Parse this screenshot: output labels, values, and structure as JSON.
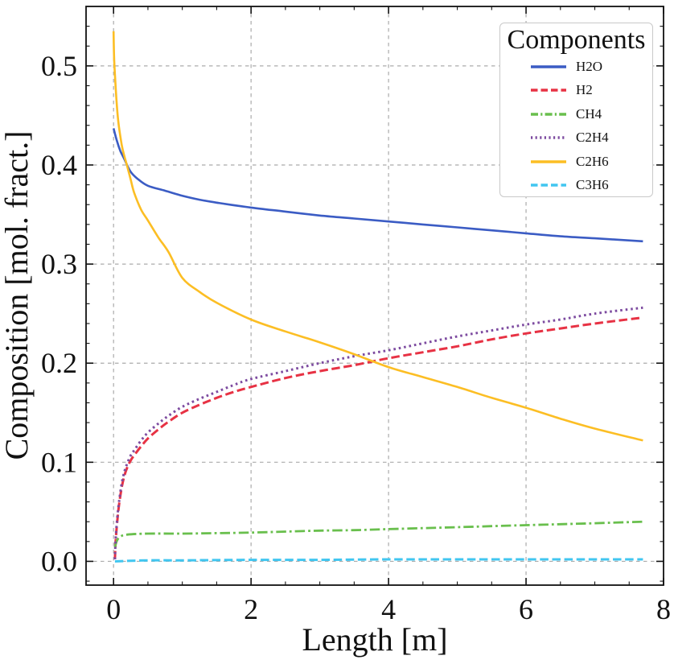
{
  "figure": {
    "background": "#ffffff"
  },
  "chart_data": {
    "type": "line",
    "title": "",
    "xlabel": "Length [m]",
    "ylabel": "Composition [mol. fract.]",
    "legend_title": "Components",
    "legend_position": "upper-right",
    "xlim": [
      -0.4,
      8.0
    ],
    "ylim": [
      -0.024,
      0.56
    ],
    "xticks": {
      "values": [
        0,
        2,
        4,
        6,
        8
      ],
      "labels": [
        "0",
        "2",
        "4",
        "6",
        "8"
      ]
    },
    "yticks": {
      "values": [
        0.0,
        0.1,
        0.2,
        0.3,
        0.4,
        0.5
      ],
      "labels": [
        "0.0",
        "0.1",
        "0.2",
        "0.3",
        "0.4",
        "0.5"
      ]
    },
    "minor_tick_step": {
      "x": 0.5,
      "y": 0.02
    },
    "grid": {
      "on": true,
      "color": "#ababab",
      "style": "dashed"
    },
    "series": [
      {
        "name": "H2O",
        "color": "#3b5cc4",
        "line_style": "solid",
        "x": [
          0,
          0.05,
          0.1,
          0.15,
          0.19,
          0.25,
          0.35,
          0.5,
          0.75,
          1,
          1.25,
          1.5,
          2,
          2.5,
          3,
          3.5,
          4,
          4.5,
          5,
          5.5,
          6,
          6.5,
          7,
          7.7
        ],
        "y": [
          0.437,
          0.424,
          0.414,
          0.407,
          0.401,
          0.393,
          0.386,
          0.379,
          0.374,
          0.369,
          0.365,
          0.362,
          0.357,
          0.353,
          0.349,
          0.346,
          0.343,
          0.34,
          0.337,
          0.334,
          0.331,
          0.328,
          0.326,
          0.323
        ]
      },
      {
        "name": "H2",
        "color": "#e73244",
        "line_style": "dashed",
        "x": [
          0.02,
          0.03,
          0.05,
          0.08,
          0.12,
          0.16,
          0.2,
          0.25,
          0.3,
          0.4,
          0.5,
          0.65,
          0.8,
          1,
          1.25,
          1.5,
          1.75,
          2,
          2.5,
          3,
          3.5,
          4,
          4.5,
          5,
          5.5,
          6,
          6.5,
          7,
          7.7
        ],
        "y": [
          0.002,
          0.02,
          0.038,
          0.057,
          0.075,
          0.087,
          0.095,
          0.102,
          0.107,
          0.116,
          0.124,
          0.133,
          0.141,
          0.15,
          0.158,
          0.165,
          0.171,
          0.176,
          0.185,
          0.192,
          0.198,
          0.205,
          0.211,
          0.217,
          0.224,
          0.23,
          0.235,
          0.24,
          0.246
        ]
      },
      {
        "name": "CH4",
        "color": "#69bf4d",
        "line_style": "dashdot",
        "x": [
          0.02,
          0.05,
          0.1,
          0.2,
          0.5,
          1,
          1.5,
          2,
          2.5,
          3,
          3.5,
          4,
          4.5,
          5,
          5.5,
          6,
          6.5,
          7,
          7.7
        ],
        "y": [
          0.014,
          0.021,
          0.025,
          0.027,
          0.028,
          0.028,
          0.0285,
          0.029,
          0.03,
          0.031,
          0.0315,
          0.0325,
          0.0335,
          0.0345,
          0.0355,
          0.0365,
          0.0375,
          0.0385,
          0.04
        ]
      },
      {
        "name": "C2H4",
        "color": "#7d4ba0",
        "line_style": "dotted",
        "x": [
          0.02,
          0.03,
          0.05,
          0.08,
          0.12,
          0.16,
          0.2,
          0.25,
          0.3,
          0.4,
          0.5,
          0.65,
          0.8,
          1,
          1.25,
          1.5,
          1.75,
          2,
          2.5,
          3,
          3.5,
          4,
          4.5,
          5,
          5.5,
          6,
          6.5,
          7,
          7.7
        ],
        "y": [
          0.002,
          0.022,
          0.041,
          0.06,
          0.079,
          0.091,
          0.099,
          0.107,
          0.112,
          0.122,
          0.13,
          0.139,
          0.147,
          0.156,
          0.164,
          0.171,
          0.178,
          0.184,
          0.192,
          0.2,
          0.207,
          0.213,
          0.22,
          0.227,
          0.233,
          0.239,
          0.244,
          0.25,
          0.256
        ]
      },
      {
        "name": "C2H6",
        "color": "#fcbe24",
        "line_style": "solid",
        "x": [
          0,
          0.01,
          0.04,
          0.07,
          0.12,
          0.16,
          0.19,
          0.25,
          0.3,
          0.4,
          0.5,
          0.65,
          0.8,
          1,
          1.25,
          1.5,
          2,
          2.5,
          3,
          3.5,
          4,
          4.5,
          5,
          5.5,
          6,
          6.5,
          7,
          7.7
        ],
        "y": [
          0.535,
          0.505,
          0.468,
          0.443,
          0.42,
          0.408,
          0.401,
          0.385,
          0.372,
          0.355,
          0.344,
          0.327,
          0.312,
          0.286,
          0.272,
          0.261,
          0.244,
          0.232,
          0.221,
          0.209,
          0.196,
          0.186,
          0.176,
          0.165,
          0.155,
          0.144,
          0.134,
          0.122
        ]
      },
      {
        "name": "C3H6",
        "color": "#41c6f0",
        "line_style": "dashed",
        "x": [
          0.02,
          0.5,
          1,
          2,
          3,
          4,
          5,
          6,
          7,
          7.7
        ],
        "y": [
          0.0,
          0.001,
          0.001,
          0.0015,
          0.0015,
          0.002,
          0.002,
          0.002,
          0.002,
          0.002
        ]
      }
    ]
  }
}
